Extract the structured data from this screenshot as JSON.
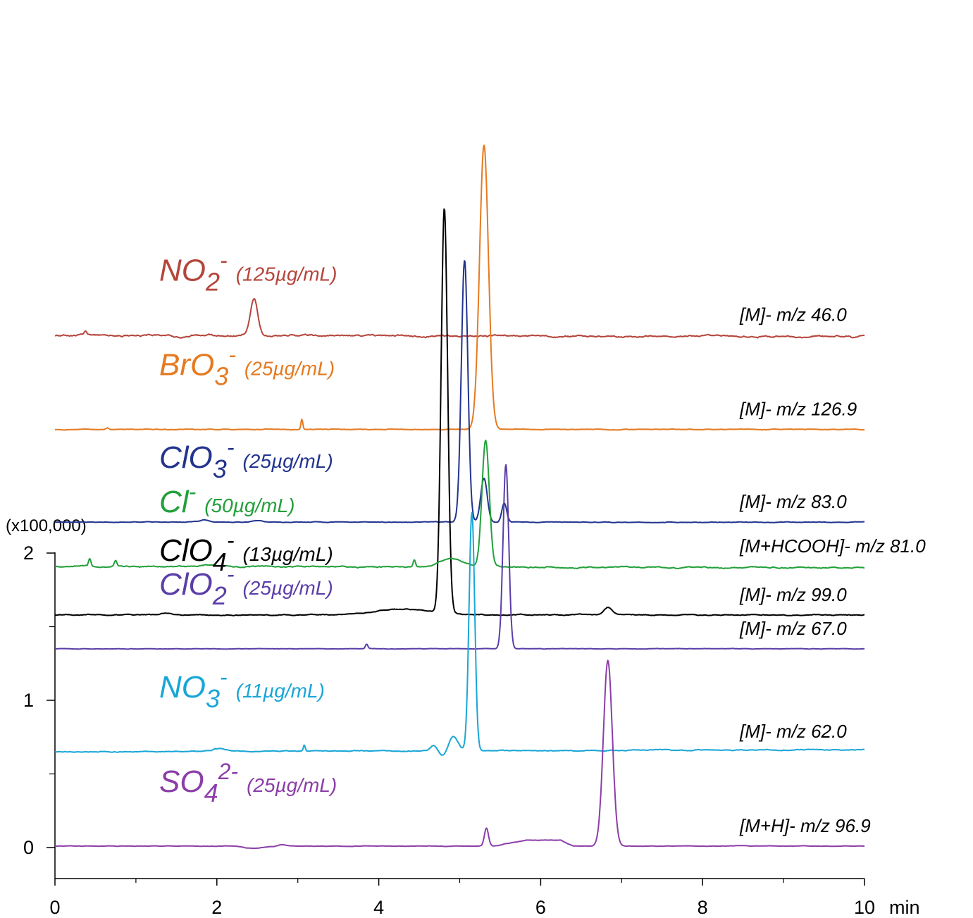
{
  "chart_data": {
    "type": "line",
    "x_unit": "min",
    "y_multiplier": "(x100,000)",
    "xlim": [
      0,
      10
    ],
    "ylim": [
      -0.22,
      3.2
    ],
    "x_ticks": [
      "0",
      "2",
      "4",
      "6",
      "8",
      "10"
    ],
    "y_ticks": [
      "0",
      "1",
      "2"
    ],
    "grid": false,
    "legend": "none",
    "series": [
      {
        "name": "NO2-",
        "formula": "NO",
        "sub": "2",
        "sup": "-",
        "conc": "(125µg/mL)",
        "annotation": "[M]- m/z 46.0",
        "color": "#b5453b",
        "baseline": 3.48,
        "drift": -0.01,
        "peaks": [
          [
            0.38,
            0.025,
            0.015
          ],
          [
            2.46,
            0.25,
            0.045
          ],
          [
            1.55,
            -0.015,
            0.08
          ]
        ],
        "noise": 0.006
      },
      {
        "name": "BrO3-",
        "formula": "BrO",
        "sub": "3",
        "sup": "-",
        "conc": "(25µg/mL)",
        "annotation": "[M]- m/z 126.9",
        "color": "#e57a20",
        "baseline": 2.84,
        "drift": 0.0,
        "peaks": [
          [
            5.3,
            1.93,
            0.055
          ],
          [
            3.05,
            0.07,
            0.012
          ],
          [
            0.65,
            0.01,
            0.015
          ]
        ],
        "noise": 0.002
      },
      {
        "name": "ClO3-",
        "formula": "ClO",
        "sub": "3",
        "sup": "-",
        "conc": "(25µg/mL)",
        "annotation": "[M]- m/z 83.0",
        "color": "#22348e",
        "baseline": 2.21,
        "drift": 0.0,
        "peaks": [
          [
            5.06,
            1.78,
            0.04
          ],
          [
            5.3,
            0.3,
            0.04
          ],
          [
            5.55,
            0.13,
            0.03
          ],
          [
            1.85,
            0.015,
            0.05
          ],
          [
            2.5,
            0.01,
            0.05
          ]
        ],
        "noise": 0.002
      },
      {
        "name": "ClO4-",
        "formula": "ClO",
        "sub": "4",
        "sup": "-",
        "conc": "(13µg/mL)",
        "annotation": "[M]- m/z 99.0",
        "color": "#000000",
        "baseline": 1.58,
        "drift": 0.0,
        "peaks": [
          [
            4.81,
            2.75,
            0.04
          ],
          [
            6.83,
            0.05,
            0.05
          ],
          [
            1.35,
            0.012,
            0.05
          ],
          [
            4.3,
            0.04,
            0.35
          ]
        ],
        "noise": 0.003
      },
      {
        "name": "Cl-",
        "formula": "Cl",
        "sub": "",
        "sup": "-",
        "conc": "(50µg/mL)",
        "annotation": "[M+HCOOH]- m/z 81.0",
        "color": "#22a03a",
        "baseline": 1.91,
        "drift": -0.01,
        "peaks": [
          [
            5.32,
            0.86,
            0.045
          ],
          [
            0.43,
            0.05,
            0.015
          ],
          [
            0.75,
            0.04,
            0.015
          ],
          [
            4.44,
            0.05,
            0.015
          ],
          [
            4.9,
            0.06,
            0.15
          ],
          [
            1.9,
            0.01,
            0.1
          ]
        ],
        "noise": 0.004
      },
      {
        "name": "ClO2-",
        "formula": "ClO",
        "sub": "2",
        "sup": "-",
        "conc": "(25µg/mL)",
        "annotation": "[M]- m/z 67.0",
        "color": "#5b3ea8",
        "baseline": 1.35,
        "drift": 0.0,
        "peaks": [
          [
            5.57,
            1.25,
            0.035
          ],
          [
            3.85,
            0.03,
            0.015
          ]
        ],
        "noise": 0.0015
      },
      {
        "name": "NO3-",
        "formula": "NO",
        "sub": "3",
        "sup": "-",
        "conc": "(11µg/mL)",
        "annotation": "[M]- m/z 62.0",
        "color": "#19a6d6",
        "baseline": 0.65,
        "drift": 0.015,
        "peaks": [
          [
            5.15,
            1.62,
            0.035
          ],
          [
            4.92,
            0.1,
            0.06
          ],
          [
            4.68,
            0.04,
            0.04
          ],
          [
            3.08,
            0.04,
            0.012
          ],
          [
            2.05,
            0.02,
            0.08
          ],
          [
            4.8,
            -0.04,
            0.05
          ]
        ],
        "noise": 0.003
      },
      {
        "name": "SO42-",
        "formula": "SO",
        "sub": "4",
        "sup": "2-",
        "conc": "(25µg/mL)",
        "annotation": "[M+H]- m/z 96.9",
        "color": "#8b3ea8",
        "baseline": 0.01,
        "drift": 0.0,
        "peaks": [
          [
            6.83,
            1.26,
            0.055
          ],
          [
            5.33,
            0.12,
            0.025
          ],
          [
            2.45,
            -0.015,
            0.12
          ],
          [
            2.8,
            0.01,
            0.04
          ]
        ],
        "plateau": [
          5.42,
          6.4,
          0.04
        ],
        "noise": 0.0015
      }
    ]
  }
}
